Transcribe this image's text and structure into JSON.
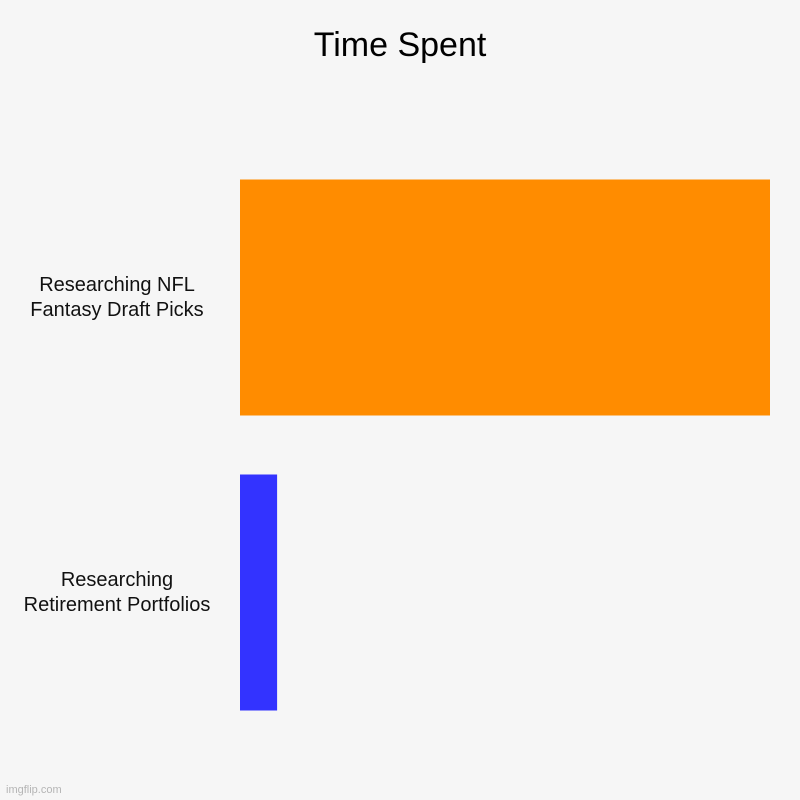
{
  "chart_data": {
    "type": "bar",
    "orientation": "horizontal",
    "title": "Time Spent",
    "categories": [
      "Researching NFL Fantasy Draft Picks",
      "Researching Retirement Portfolios"
    ],
    "values": [
      100,
      7
    ],
    "colors": [
      "#ff8c00",
      "#3333ff"
    ],
    "xlim": [
      0,
      100
    ],
    "grid": false,
    "legend": "none"
  },
  "watermark": "imgflip.com"
}
